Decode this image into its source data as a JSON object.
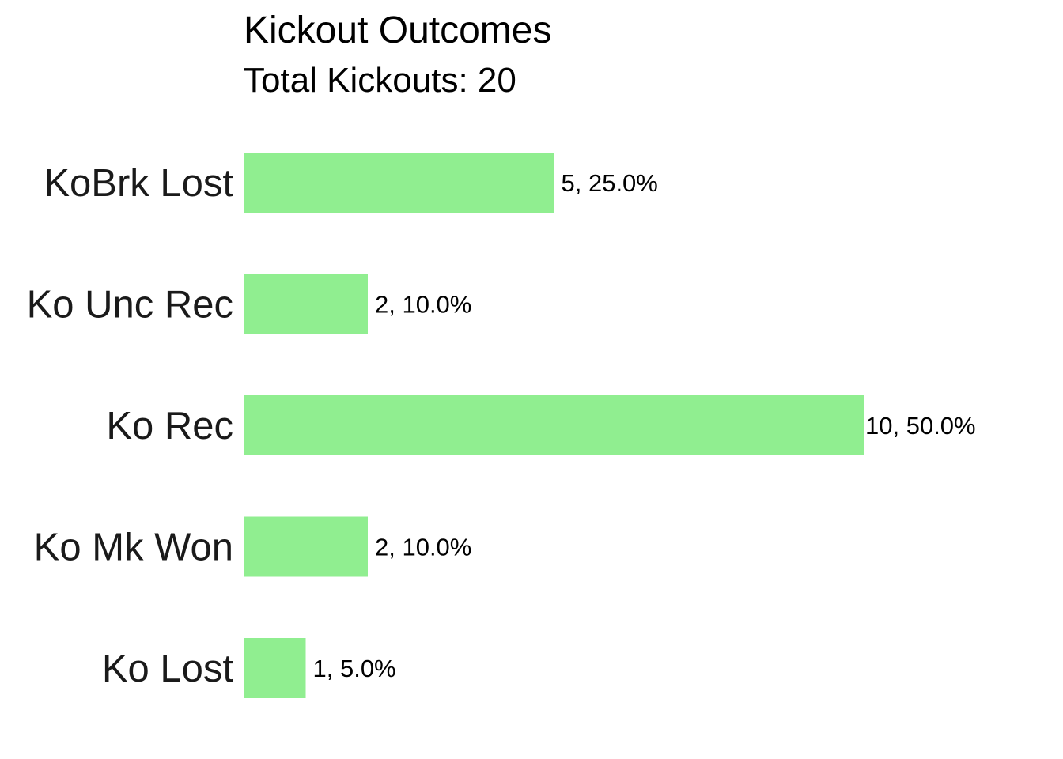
{
  "chart_data": {
    "type": "bar",
    "orientation": "horizontal",
    "title": "Kickout Outcomes",
    "subtitle": "Total Kickouts: 20",
    "categories": [
      "KoBrk Lost",
      "Ko Unc Rec",
      "Ko Rec",
      "Ko Mk Won",
      "Ko Lost"
    ],
    "values": [
      5,
      2,
      10,
      2,
      1
    ],
    "data_labels": [
      "5, 25.0%",
      "2, 10.0%",
      "10, 50.0%",
      "2, 10.0%",
      "1, 5.0%"
    ],
    "xlabel": "",
    "ylabel": "",
    "xlim": [
      0,
      10
    ],
    "grid": false,
    "legend": "none",
    "bar_color": "#90ee90"
  }
}
